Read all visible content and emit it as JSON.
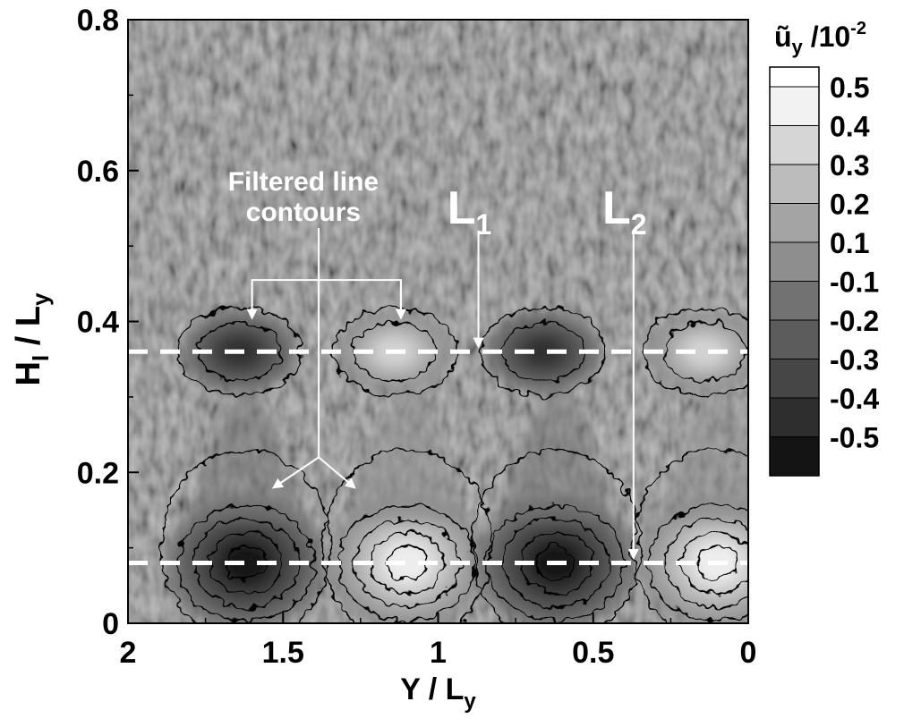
{
  "chart_data": {
    "type": "heatmap",
    "xlabel": "Y / L",
    "xlabel_sub": "y",
    "ylabel": "H",
    "ylabel_sub1": "I",
    "ylabel_mid": " / L",
    "ylabel_sub2": "y",
    "x_range": [
      2,
      0
    ],
    "y_range": [
      0,
      0.8
    ],
    "x_ticks": [
      "2",
      "1.5",
      "1",
      "0.5",
      "0"
    ],
    "x_tick_values": [
      2,
      1.5,
      1,
      0.5,
      0
    ],
    "y_ticks": [
      "0",
      "0.2",
      "0.4",
      "0.6",
      "0.8"
    ],
    "y_tick_values": [
      0,
      0.2,
      0.4,
      0.6,
      0.8
    ],
    "colorbar": {
      "title_main": "ũ",
      "title_sub": "y",
      "title_rest": " /10",
      "title_sup": "-2",
      "levels": [
        {
          "label": "0.5",
          "value": 0.5,
          "color": "#f2f2f2"
        },
        {
          "label": "0.4",
          "value": 0.4,
          "color": "#d6d6d6"
        },
        {
          "label": "0.3",
          "value": 0.3,
          "color": "#bcbcbc"
        },
        {
          "label": "0.2",
          "value": 0.2,
          "color": "#a4a4a4"
        },
        {
          "label": "0.1",
          "value": 0.1,
          "color": "#8e8e8e"
        },
        {
          "label": "-0.1",
          "value": -0.1,
          "color": "#727272"
        },
        {
          "label": "-0.2",
          "value": -0.2,
          "color": "#5c5c5c"
        },
        {
          "label": "-0.3",
          "value": -0.3,
          "color": "#464646"
        },
        {
          "label": "-0.4",
          "value": -0.4,
          "color": "#2e2e2e"
        },
        {
          "label": "-0.5",
          "value": -0.5,
          "color": "#141414"
        }
      ]
    },
    "structures": [
      {
        "x": 1.62,
        "y": 0.08,
        "sign": "negative",
        "row": "lower"
      },
      {
        "x": 1.1,
        "y": 0.08,
        "sign": "positive",
        "row": "lower"
      },
      {
        "x": 0.62,
        "y": 0.08,
        "sign": "negative",
        "row": "lower"
      },
      {
        "x": 0.1,
        "y": 0.08,
        "sign": "positive",
        "row": "lower"
      },
      {
        "x": 1.64,
        "y": 0.36,
        "sign": "negative",
        "row": "upper"
      },
      {
        "x": 1.14,
        "y": 0.36,
        "sign": "positive",
        "row": "upper"
      },
      {
        "x": 0.66,
        "y": 0.36,
        "sign": "negative",
        "row": "upper"
      },
      {
        "x": 0.14,
        "y": 0.36,
        "sign": "positive",
        "row": "upper"
      }
    ],
    "reference_lines": [
      {
        "label": "L",
        "sub": "1",
        "y": 0.36,
        "arrow_x": 0.87,
        "label_x": 0.87,
        "label_y": 0.53
      },
      {
        "label": "L",
        "sub": "2",
        "y": 0.08,
        "arrow_x": 0.37,
        "label_x": 0.37,
        "label_y": 0.53
      }
    ],
    "annotation": {
      "lines": [
        "Filtered line",
        "contours"
      ],
      "x": 1.4,
      "y": 0.55,
      "targets": [
        {
          "x": 1.6,
          "y": 0.405
        },
        {
          "x": 1.12,
          "y": 0.405
        },
        {
          "x": 1.53,
          "y": 0.18
        },
        {
          "x": 1.27,
          "y": 0.18
        }
      ]
    }
  }
}
